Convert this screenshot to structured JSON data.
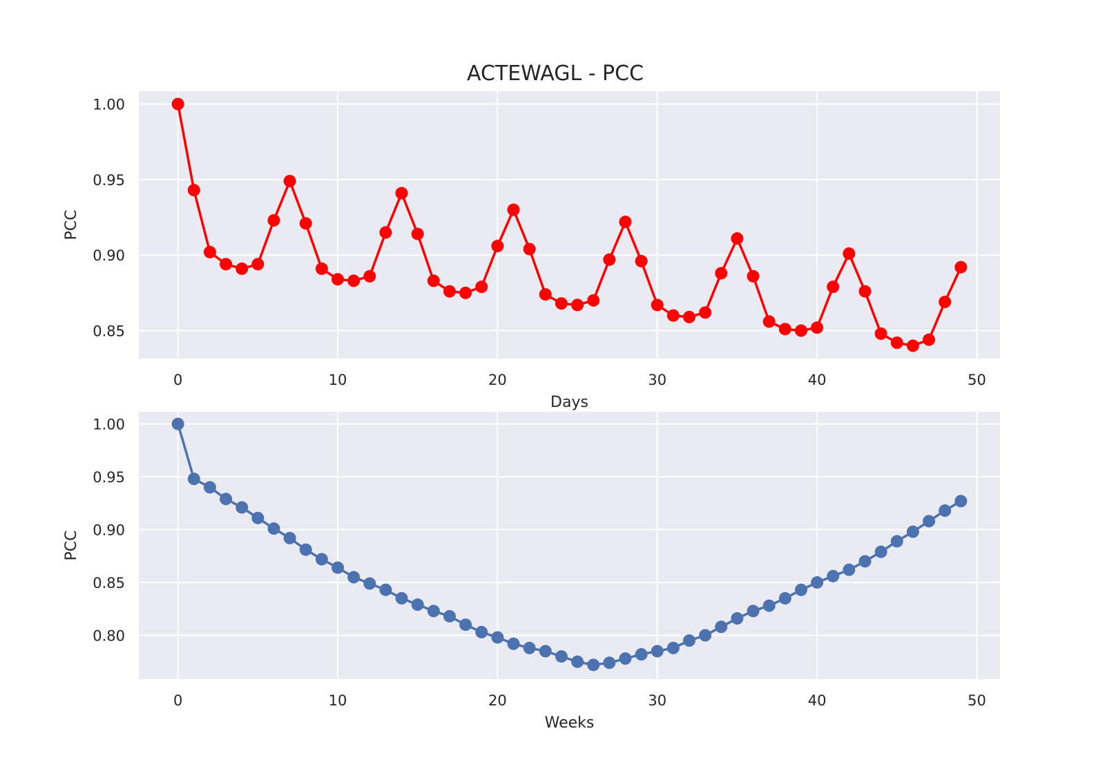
{
  "figure": {
    "title": "ACTEWAGL - PCC",
    "background": "#ffffff",
    "axes_facecolor": "#eaeaf2",
    "grid_color": "#ffffff"
  },
  "chart_data": [
    {
      "type": "line",
      "title": "ACTEWAGL - PCC",
      "xlabel": "Days",
      "ylabel": "PCC",
      "xlim": [
        -2.45,
        51.45
      ],
      "ylim": [
        0.8315,
        1.0085
      ],
      "xticks": [
        0,
        10,
        20,
        30,
        40,
        50
      ],
      "yticks": [
        0.85,
        0.9,
        0.95,
        1.0
      ],
      "xtick_labels": [
        "0",
        "10",
        "20",
        "30",
        "40",
        "50"
      ],
      "ytick_labels": [
        "0.85",
        "0.90",
        "0.95",
        "1.00"
      ],
      "grid": true,
      "legend": "none",
      "series": [
        {
          "color": "#ff0000",
          "marker": "o",
          "x": [
            0,
            1,
            2,
            3,
            4,
            5,
            6,
            7,
            8,
            9,
            10,
            11,
            12,
            13,
            14,
            15,
            16,
            17,
            18,
            19,
            20,
            21,
            22,
            23,
            24,
            25,
            26,
            27,
            28,
            29,
            30,
            31,
            32,
            33,
            34,
            35,
            36,
            37,
            38,
            39,
            40,
            41,
            42,
            43,
            44,
            45,
            46,
            47,
            48,
            49
          ],
          "y": [
            1.0,
            0.943,
            0.902,
            0.894,
            0.891,
            0.894,
            0.923,
            0.949,
            0.921,
            0.891,
            0.884,
            0.883,
            0.886,
            0.915,
            0.941,
            0.914,
            0.883,
            0.876,
            0.875,
            0.879,
            0.906,
            0.93,
            0.904,
            0.874,
            0.868,
            0.867,
            0.87,
            0.897,
            0.922,
            0.896,
            0.867,
            0.86,
            0.859,
            0.862,
            0.888,
            0.911,
            0.886,
            0.856,
            0.851,
            0.85,
            0.852,
            0.879,
            0.901,
            0.876,
            0.848,
            0.842,
            0.84,
            0.844,
            0.869,
            0.892
          ]
        }
      ]
    },
    {
      "type": "line",
      "xlabel": "Weeks",
      "ylabel": "PCC",
      "xlim": [
        -2.45,
        51.45
      ],
      "ylim": [
        0.7585,
        1.0115
      ],
      "xticks": [
        0,
        10,
        20,
        30,
        40,
        50
      ],
      "yticks": [
        0.8,
        0.85,
        0.9,
        0.95,
        1.0
      ],
      "xtick_labels": [
        "0",
        "10",
        "20",
        "30",
        "40",
        "50"
      ],
      "ytick_labels": [
        "0.80",
        "0.85",
        "0.90",
        "0.95",
        "1.00"
      ],
      "grid": true,
      "legend": "none",
      "series": [
        {
          "color": "#4c72b0",
          "marker": "o",
          "x": [
            0,
            1,
            2,
            3,
            4,
            5,
            6,
            7,
            8,
            9,
            10,
            11,
            12,
            13,
            14,
            15,
            16,
            17,
            18,
            19,
            20,
            21,
            22,
            23,
            24,
            25,
            26,
            27,
            28,
            29,
            30,
            31,
            32,
            33,
            34,
            35,
            36,
            37,
            38,
            39,
            40,
            41,
            42,
            43,
            44,
            45,
            46,
            47,
            48,
            49
          ],
          "y": [
            1.0,
            0.948,
            0.94,
            0.929,
            0.921,
            0.911,
            0.901,
            0.892,
            0.881,
            0.872,
            0.864,
            0.855,
            0.849,
            0.843,
            0.835,
            0.829,
            0.823,
            0.818,
            0.81,
            0.803,
            0.798,
            0.792,
            0.788,
            0.785,
            0.78,
            0.775,
            0.772,
            0.774,
            0.778,
            0.782,
            0.785,
            0.788,
            0.795,
            0.8,
            0.808,
            0.816,
            0.823,
            0.828,
            0.835,
            0.843,
            0.85,
            0.856,
            0.862,
            0.87,
            0.879,
            0.889,
            0.898,
            0.908,
            0.918,
            0.927
          ]
        }
      ]
    }
  ]
}
